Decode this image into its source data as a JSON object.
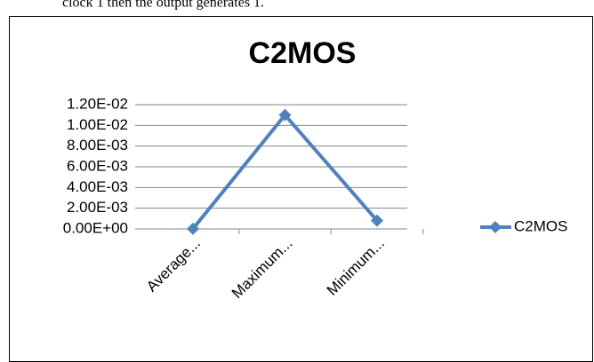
{
  "text_above": "clock 1 then the output generates 1.",
  "chart_data": {
    "type": "line",
    "title": "C2MOS",
    "categories": [
      "Average...",
      "Maximum...",
      "Minimum..."
    ],
    "series": [
      {
        "name": "C2MOS",
        "color": "#4f81bd",
        "values": [
          1e-05,
          0.011,
          0.0008
        ]
      }
    ],
    "ylim": [
      0,
      0.012
    ],
    "yticks": [
      {
        "value": 0,
        "label": "0.00E+00"
      },
      {
        "value": 0.002,
        "label": "2.00E-03"
      },
      {
        "value": 0.004,
        "label": "4.00E-03"
      },
      {
        "value": 0.006,
        "label": "6.00E-03"
      },
      {
        "value": 0.008,
        "label": "8.00E-03"
      },
      {
        "value": 0.01,
        "label": "1.00E-02"
      },
      {
        "value": 0.012,
        "label": "1.20E-02"
      }
    ],
    "grid": true,
    "legend": "right"
  }
}
